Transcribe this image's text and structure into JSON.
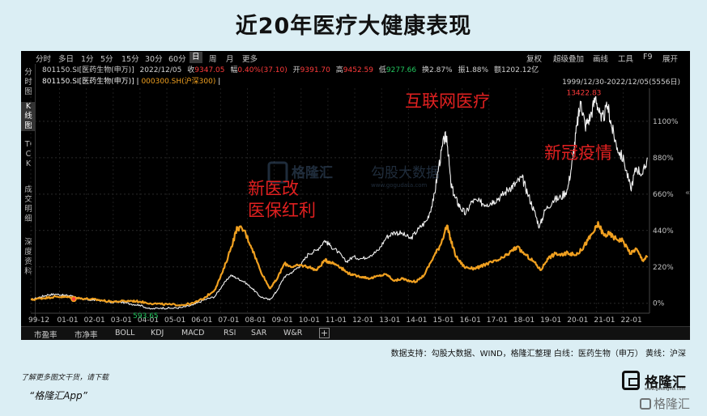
{
  "title": "近20年医疗大健康表现",
  "toolbar": {
    "timeframes": [
      "分时",
      "多日",
      "1分",
      "5分",
      "15分",
      "30分",
      "60分",
      "日",
      "周",
      "月",
      "更多"
    ],
    "active_timeframe": "日",
    "right_items": [
      "复权",
      "超级叠加",
      "画线",
      "工具",
      "F9",
      "展开"
    ]
  },
  "sidebar": {
    "items": [
      {
        "label": "分时图"
      },
      {
        "label": "K线图",
        "active": true
      },
      {
        "label": "TICK"
      },
      {
        "label": "成交明细"
      },
      {
        "label": "深度资料"
      }
    ]
  },
  "quote": {
    "code_name": "801150.SI[医药生物(申万)]",
    "date": "2022/12/05",
    "close_label": "收",
    "close": "9347.05",
    "change_label": "幅",
    "change": "0.40%(37.10)",
    "open_label": "开",
    "open": "9391.70",
    "high_label": "高",
    "high": "9452.59",
    "low_label": "低",
    "low": "9277.66",
    "turnover_label": "换",
    "turnover": "2.87%",
    "amplitude_label": "振",
    "amplitude": "1.88%",
    "amount_label": "额",
    "amount": "1202.12亿"
  },
  "legend_line": {
    "main": "801150.SI[医药生物(申万)]",
    "separator": "|",
    "overlay": "000300.SH(沪深300)",
    "overlay_tail": "|"
  },
  "date_range": "1999/12/30-2022/12/05(5556日)",
  "bottom_tabs": [
    "市盈率",
    "市净率",
    "BOLL",
    "KDJ",
    "MACD",
    "RSI",
    "SAR",
    "W&R"
  ],
  "annotations": [
    {
      "text": "新医改",
      "key": "reform1"
    },
    {
      "text": "医保红利",
      "key": "reform2"
    },
    {
      "text": "互联网医疗",
      "key": "internet"
    },
    {
      "text": "新冠疫情",
      "key": "covid"
    }
  ],
  "watermark": {
    "logo_text": "格隆汇",
    "gegu_text": "勾股大数据",
    "gegu_url": "www.gogudata.com"
  },
  "source_text": "数据支持：勾股大数据、WIND，格隆汇整理 白线：医药生物（申万） 黄线：沪深",
  "footnote": "了解更多图文干货，请下载",
  "app_text": "“格隆汇App”",
  "logo": {
    "name": "格隆汇",
    "url": "www.gelonghui.com"
  },
  "bottom_watermark": "格隆汇",
  "colors": {
    "background": "#dbeef4",
    "panel": "#000000",
    "white_line": "#f2f2f2",
    "orange_line": "#f0a020",
    "annotation": "#e02020",
    "price_red": "#ff3b3b",
    "price_green": "#22c55e"
  },
  "chart_data": {
    "type": "line",
    "x_ticks": [
      "99-12",
      "01-01",
      "02-01",
      "03-01",
      "04-01",
      "05-01",
      "06-01",
      "07-01",
      "08-01",
      "09-01",
      "10-01",
      "11-01",
      "12-01",
      "13-01",
      "14-01",
      "15-01",
      "16-01",
      "17-01",
      "18-01",
      "19-01",
      "20-01",
      "21-01",
      "22-01"
    ],
    "y_ticks": [
      "1100%",
      "880%",
      "660%",
      "440%",
      "220%",
      "0%"
    ],
    "y_tick_values": [
      1100,
      880,
      660,
      440,
      220,
      0
    ],
    "ylim": [
      -60,
      1300
    ],
    "xlim": [
      1999.95,
      2023.0
    ],
    "labels": [
      {
        "text": "13422.83",
        "x": 2020.45,
        "y": 1240,
        "color": "#ff3b3b"
      },
      {
        "text": "593.65",
        "x": 2004.3,
        "y": -40,
        "color": "#22c55e"
      }
    ],
    "series": [
      {
        "name": "医药生物(申万)",
        "color": "#f2f2f2",
        "points": [
          [
            1999.95,
            20
          ],
          [
            2000.3,
            38
          ],
          [
            2000.6,
            52
          ],
          [
            2000.9,
            55
          ],
          [
            2001.2,
            48
          ],
          [
            2001.5,
            45
          ],
          [
            2001.8,
            25
          ],
          [
            2002.2,
            20
          ],
          [
            2002.5,
            18
          ],
          [
            2002.9,
            5
          ],
          [
            2003.3,
            8
          ],
          [
            2003.7,
            -5
          ],
          [
            2004.0,
            -10
          ],
          [
            2004.4,
            -35
          ],
          [
            2004.8,
            -28
          ],
          [
            2005.2,
            -30
          ],
          [
            2005.6,
            -25
          ],
          [
            2006.0,
            -10
          ],
          [
            2006.4,
            20
          ],
          [
            2006.8,
            40
          ],
          [
            2007.1,
            110
          ],
          [
            2007.4,
            170
          ],
          [
            2007.65,
            150
          ],
          [
            2007.9,
            130
          ],
          [
            2008.2,
            90
          ],
          [
            2008.5,
            40
          ],
          [
            2008.85,
            20
          ],
          [
            2009.1,
            70
          ],
          [
            2009.4,
            160
          ],
          [
            2009.7,
            190
          ],
          [
            2010.0,
            230
          ],
          [
            2010.3,
            300
          ],
          [
            2010.6,
            320
          ],
          [
            2010.9,
            380
          ],
          [
            2011.1,
            350
          ],
          [
            2011.4,
            310
          ],
          [
            2011.7,
            250
          ],
          [
            2011.95,
            280
          ],
          [
            2012.3,
            270
          ],
          [
            2012.6,
            290
          ],
          [
            2012.9,
            320
          ],
          [
            2013.2,
            400
          ],
          [
            2013.5,
            430
          ],
          [
            2013.8,
            420
          ],
          [
            2014.1,
            390
          ],
          [
            2014.4,
            450
          ],
          [
            2014.7,
            500
          ],
          [
            2014.95,
            620
          ],
          [
            2015.15,
            830
          ],
          [
            2015.35,
            990
          ],
          [
            2015.45,
            1010
          ],
          [
            2015.6,
            720
          ],
          [
            2015.75,
            640
          ],
          [
            2015.95,
            580
          ],
          [
            2016.15,
            540
          ],
          [
            2016.4,
            620
          ],
          [
            2016.7,
            610
          ],
          [
            2016.95,
            600
          ],
          [
            2017.2,
            620
          ],
          [
            2017.5,
            650
          ],
          [
            2017.8,
            700
          ],
          [
            2018.0,
            720
          ],
          [
            2018.25,
            760
          ],
          [
            2018.45,
            670
          ],
          [
            2018.7,
            560
          ],
          [
            2018.9,
            460
          ],
          [
            2019.1,
            560
          ],
          [
            2019.4,
            620
          ],
          [
            2019.7,
            640
          ],
          [
            2019.95,
            690
          ],
          [
            2020.15,
            880
          ],
          [
            2020.3,
            1080
          ],
          [
            2020.45,
            1220
          ],
          [
            2020.6,
            1070
          ],
          [
            2020.8,
            1130
          ],
          [
            2021.0,
            1250
          ],
          [
            2021.2,
            1100
          ],
          [
            2021.45,
            1190
          ],
          [
            2021.6,
            1060
          ],
          [
            2021.8,
            940
          ],
          [
            2022.05,
            860
          ],
          [
            2022.3,
            690
          ],
          [
            2022.5,
            820
          ],
          [
            2022.75,
            780
          ],
          [
            2022.93,
            880
          ]
        ]
      },
      {
        "name": "沪深300",
        "color": "#f0a020",
        "points": [
          [
            1999.95,
            20
          ],
          [
            2000.3,
            30
          ],
          [
            2000.6,
            35
          ],
          [
            2000.9,
            40
          ],
          [
            2001.2,
            38
          ],
          [
            2001.5,
            35
          ],
          [
            2001.8,
            30
          ],
          [
            2002.2,
            25
          ],
          [
            2002.5,
            20
          ],
          [
            2002.9,
            10
          ],
          [
            2003.3,
            12
          ],
          [
            2003.7,
            15
          ],
          [
            2004.0,
            10
          ],
          [
            2004.4,
            0
          ],
          [
            2004.8,
            -5
          ],
          [
            2005.2,
            -8
          ],
          [
            2005.6,
            -10
          ],
          [
            2006.0,
            0
          ],
          [
            2006.4,
            30
          ],
          [
            2006.8,
            80
          ],
          [
            2007.1,
            190
          ],
          [
            2007.4,
            330
          ],
          [
            2007.65,
            460
          ],
          [
            2007.9,
            440
          ],
          [
            2008.2,
            330
          ],
          [
            2008.5,
            200
          ],
          [
            2008.85,
            90
          ],
          [
            2009.1,
            140
          ],
          [
            2009.4,
            240
          ],
          [
            2009.7,
            220
          ],
          [
            2010.0,
            230
          ],
          [
            2010.3,
            220
          ],
          [
            2010.6,
            200
          ],
          [
            2010.9,
            260
          ],
          [
            2011.1,
            250
          ],
          [
            2011.4,
            230
          ],
          [
            2011.7,
            190
          ],
          [
            2011.95,
            170
          ],
          [
            2012.3,
            160
          ],
          [
            2012.6,
            150
          ],
          [
            2012.9,
            165
          ],
          [
            2013.2,
            175
          ],
          [
            2013.5,
            135
          ],
          [
            2013.8,
            150
          ],
          [
            2013.95,
            140
          ],
          [
            2014.3,
            130
          ],
          [
            2014.6,
            170
          ],
          [
            2014.95,
            280
          ],
          [
            2015.2,
            350
          ],
          [
            2015.45,
            470
          ],
          [
            2015.6,
            380
          ],
          [
            2015.8,
            280
          ],
          [
            2016.1,
            220
          ],
          [
            2016.4,
            210
          ],
          [
            2016.7,
            220
          ],
          [
            2016.95,
            240
          ],
          [
            2017.3,
            255
          ],
          [
            2017.6,
            280
          ],
          [
            2017.9,
            320
          ],
          [
            2018.05,
            340
          ],
          [
            2018.4,
            290
          ],
          [
            2018.7,
            250
          ],
          [
            2018.95,
            200
          ],
          [
            2019.2,
            270
          ],
          [
            2019.5,
            300
          ],
          [
            2019.8,
            290
          ],
          [
            2019.95,
            310
          ],
          [
            2020.2,
            290
          ],
          [
            2020.45,
            320
          ],
          [
            2020.7,
            380
          ],
          [
            2020.95,
            440
          ],
          [
            2021.1,
            480
          ],
          [
            2021.3,
            410
          ],
          [
            2021.5,
            420
          ],
          [
            2021.75,
            390
          ],
          [
            2022.0,
            380
          ],
          [
            2022.3,
            300
          ],
          [
            2022.5,
            330
          ],
          [
            2022.75,
            260
          ],
          [
            2022.93,
            285
          ]
        ]
      }
    ]
  }
}
